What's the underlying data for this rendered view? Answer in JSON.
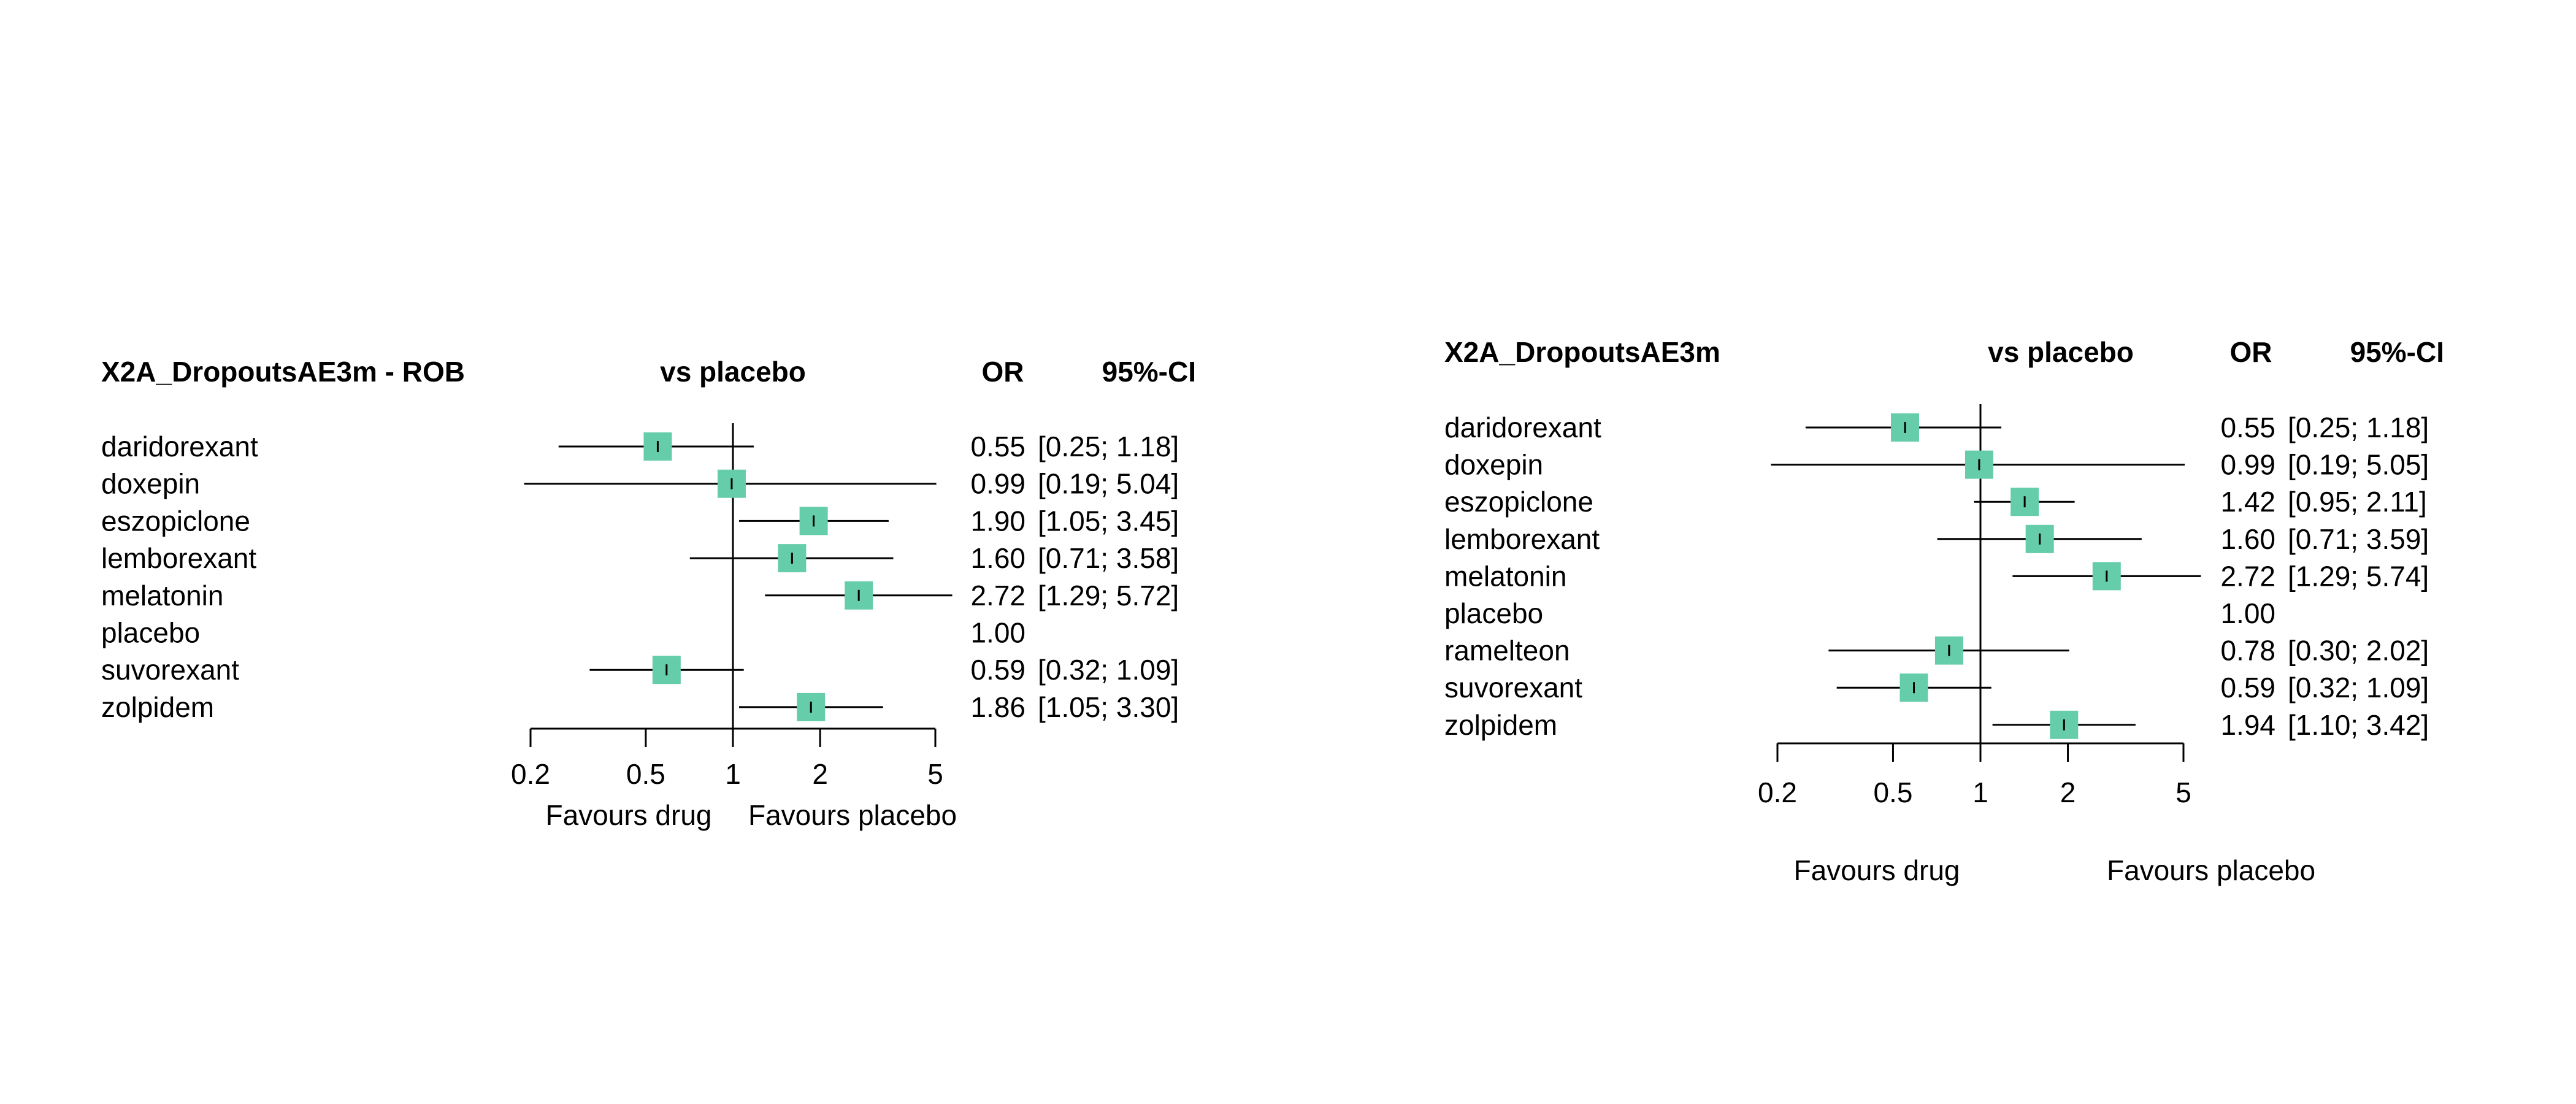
{
  "chart_data": [
    {
      "type": "forest",
      "title": "X2A_DropoutsAE3m - ROB",
      "header_comparison": "vs placebo",
      "header_measure": "OR",
      "header_ci": "95%-CI",
      "x_scale": "log",
      "xlim": [
        0.2,
        5
      ],
      "reference_line": 1,
      "ticks": [
        0.2,
        0.5,
        1,
        2,
        5
      ],
      "tick_labels": [
        "0.2",
        "0.5",
        "1",
        "2",
        "5"
      ],
      "label_left": "Favours drug",
      "label_right": "Favours placebo",
      "marker_color": "#66CDAA",
      "rows": [
        {
          "treatment": "daridorexant",
          "or": 0.55,
          "lo": 0.25,
          "hi": 1.18,
          "or_text": "0.55",
          "ci_text": "[0.25; 1.18]"
        },
        {
          "treatment": "doxepin",
          "or": 0.99,
          "lo": 0.19,
          "hi": 5.04,
          "or_text": "0.99",
          "ci_text": "[0.19; 5.04]"
        },
        {
          "treatment": "eszopiclone",
          "or": 1.9,
          "lo": 1.05,
          "hi": 3.45,
          "or_text": "1.90",
          "ci_text": "[1.05; 3.45]"
        },
        {
          "treatment": "lemborexant",
          "or": 1.6,
          "lo": 0.71,
          "hi": 3.58,
          "or_text": "1.60",
          "ci_text": "[0.71; 3.58]"
        },
        {
          "treatment": "melatonin",
          "or": 2.72,
          "lo": 1.29,
          "hi": 5.72,
          "or_text": "2.72",
          "ci_text": "[1.29; 5.72]"
        },
        {
          "treatment": "placebo",
          "or": null,
          "lo": null,
          "hi": null,
          "or_text": "1.00",
          "ci_text": ""
        },
        {
          "treatment": "suvorexant",
          "or": 0.59,
          "lo": 0.32,
          "hi": 1.09,
          "or_text": "0.59",
          "ci_text": "[0.32; 1.09]"
        },
        {
          "treatment": "zolpidem",
          "or": 1.86,
          "lo": 1.05,
          "hi": 3.3,
          "or_text": "1.86",
          "ci_text": "[1.05; 3.30]"
        }
      ]
    },
    {
      "type": "forest",
      "title": "X2A_DropoutsAE3m",
      "header_comparison": "vs placebo",
      "header_measure": "OR",
      "header_ci": "95%-CI",
      "x_scale": "log",
      "xlim": [
        0.2,
        5
      ],
      "reference_line": 1,
      "ticks": [
        0.2,
        0.5,
        1,
        2,
        5
      ],
      "tick_labels": [
        "0.2",
        "0.5",
        "1",
        "2",
        "5"
      ],
      "label_left": "Favours drug",
      "label_right": "Favours placebo",
      "marker_color": "#66CDAA",
      "rows": [
        {
          "treatment": "daridorexant",
          "or": 0.55,
          "lo": 0.25,
          "hi": 1.18,
          "or_text": "0.55",
          "ci_text": "[0.25; 1.18]"
        },
        {
          "treatment": "doxepin",
          "or": 0.99,
          "lo": 0.19,
          "hi": 5.05,
          "or_text": "0.99",
          "ci_text": "[0.19; 5.05]"
        },
        {
          "treatment": "eszopiclone",
          "or": 1.42,
          "lo": 0.95,
          "hi": 2.11,
          "or_text": "1.42",
          "ci_text": "[0.95; 2.11]"
        },
        {
          "treatment": "lemborexant",
          "or": 1.6,
          "lo": 0.71,
          "hi": 3.59,
          "or_text": "1.60",
          "ci_text": "[0.71; 3.59]"
        },
        {
          "treatment": "melatonin",
          "or": 2.72,
          "lo": 1.29,
          "hi": 5.74,
          "or_text": "2.72",
          "ci_text": "[1.29; 5.74]"
        },
        {
          "treatment": "placebo",
          "or": null,
          "lo": null,
          "hi": null,
          "or_text": "1.00",
          "ci_text": ""
        },
        {
          "treatment": "ramelteon",
          "or": 0.78,
          "lo": 0.3,
          "hi": 2.02,
          "or_text": "0.78",
          "ci_text": "[0.30; 2.02]"
        },
        {
          "treatment": "suvorexant",
          "or": 0.59,
          "lo": 0.32,
          "hi": 1.09,
          "or_text": "0.59",
          "ci_text": "[0.32; 1.09]"
        },
        {
          "treatment": "zolpidem",
          "or": 1.94,
          "lo": 1.1,
          "hi": 3.42,
          "or_text": "1.94",
          "ci_text": "[1.10; 3.42]"
        }
      ]
    }
  ]
}
